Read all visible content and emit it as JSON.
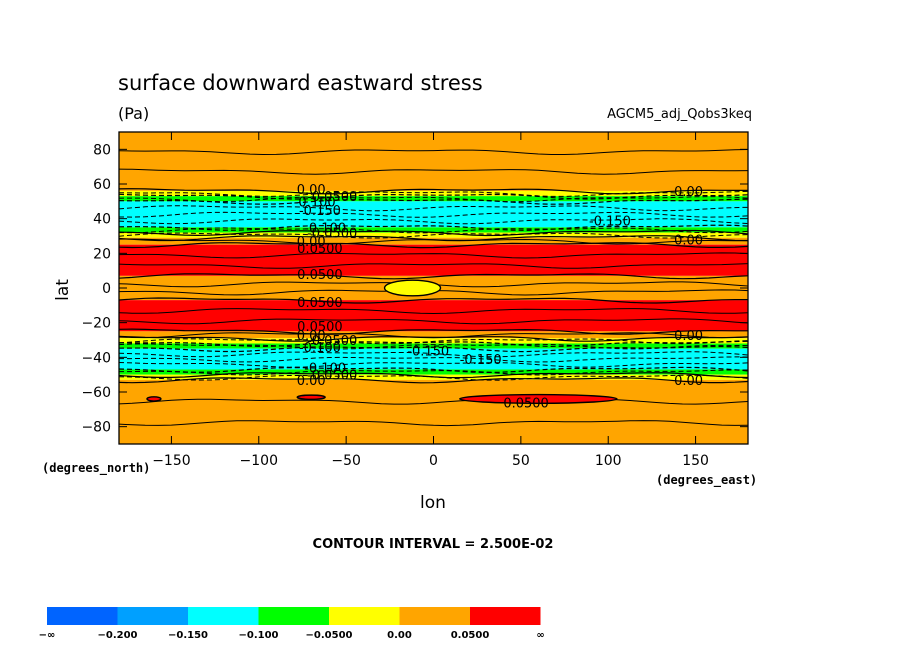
{
  "chart_data": {
    "type": "contour",
    "title": "surface downward eastward stress",
    "units": "(Pa)",
    "dataset": "AGCM5_adj_Qobs3keq",
    "xlabel": "lon",
    "ylabel": "lat",
    "x_units": "(degrees_east)",
    "y_units": "(degrees_north)",
    "xlim": [
      -180,
      180
    ],
    "ylim": [
      -90,
      90
    ],
    "x_ticks": [
      {
        "value": -150,
        "label": "−150"
      },
      {
        "value": -100,
        "label": "−100"
      },
      {
        "value": -50,
        "label": "−50"
      },
      {
        "value": 0,
        "label": "0"
      },
      {
        "value": 50,
        "label": "50"
      },
      {
        "value": 100,
        "label": "100"
      },
      {
        "value": 150,
        "label": "150"
      }
    ],
    "y_ticks": [
      {
        "value": 80,
        "label": "80"
      },
      {
        "value": 60,
        "label": "60"
      },
      {
        "value": 40,
        "label": "40"
      },
      {
        "value": 20,
        "label": "20"
      },
      {
        "value": 0,
        "label": "0"
      },
      {
        "value": -20,
        "label": "−20"
      },
      {
        "value": -40,
        "label": "−40"
      },
      {
        "value": -60,
        "label": "−60"
      },
      {
        "value": -80,
        "label": "−80"
      }
    ],
    "contour_interval": "CONTOUR INTERVAL = 2.500E-02",
    "zonal_bands": [
      {
        "lat_min": 56,
        "lat_max": 90,
        "level": 3,
        "color": "#ffa500"
      },
      {
        "lat_min": 53,
        "lat_max": 56,
        "level": 2,
        "color": "#ffff00"
      },
      {
        "lat_min": 50,
        "lat_max": 53,
        "level": 1,
        "color": "#00ff00"
      },
      {
        "lat_min": 35,
        "lat_max": 50,
        "level": 0,
        "color": "#00ffff"
      },
      {
        "lat_min": 32,
        "lat_max": 35,
        "level": 1,
        "color": "#00ff00"
      },
      {
        "lat_min": 29,
        "lat_max": 32,
        "level": 2,
        "color": "#ffff00"
      },
      {
        "lat_min": 25,
        "lat_max": 29,
        "level": 3,
        "color": "#ffa500"
      },
      {
        "lat_min": 7,
        "lat_max": 25,
        "level": 4,
        "color": "#ff0000"
      },
      {
        "lat_min": -7,
        "lat_max": 7,
        "level": 3,
        "color": "#ffa500"
      },
      {
        "lat_min": -25,
        "lat_max": -7,
        "level": 4,
        "color": "#ff0000"
      },
      {
        "lat_min": -29,
        "lat_max": -25,
        "level": 3,
        "color": "#ffa500"
      },
      {
        "lat_min": -32,
        "lat_max": -29,
        "level": 2,
        "color": "#ffff00"
      },
      {
        "lat_min": -35,
        "lat_max": -32,
        "level": 1,
        "color": "#00ff00"
      },
      {
        "lat_min": -47,
        "lat_max": -35,
        "level": 0,
        "color": "#00ffff"
      },
      {
        "lat_min": -50,
        "lat_max": -47,
        "level": 1,
        "color": "#00ff00"
      },
      {
        "lat_min": -53,
        "lat_max": -50,
        "level": 2,
        "color": "#ffff00"
      },
      {
        "lat_min": -90,
        "lat_max": -53,
        "level": 3,
        "color": "#ffa500"
      }
    ],
    "features": [
      {
        "kind": "yellow-cell",
        "lon": -12,
        "lat": 0,
        "lon_half": 16,
        "lat_half": 4.5,
        "color": "#ffff00"
      },
      {
        "kind": "red-patch",
        "lon": 60,
        "lat": -64,
        "lon_half": 45,
        "lat_half": 2.5,
        "color": "#ff0000"
      },
      {
        "kind": "red-patch",
        "lon": -70,
        "lat": -63,
        "lon_half": 8,
        "lat_half": 1.2,
        "color": "#ff0000"
      },
      {
        "kind": "red-patch",
        "lon": -160,
        "lat": -64,
        "lon_half": 4,
        "lat_half": 1.2,
        "color": "#ff0000"
      }
    ],
    "contour_labels": [
      {
        "text": "0.00",
        "lon": -70,
        "lat": 57
      },
      {
        "text": "-0.0500",
        "lon": -58,
        "lat": 53
      },
      {
        "text": "-0.100",
        "lon": -68,
        "lat": 50
      },
      {
        "text": "-0.150",
        "lon": -65,
        "lat": 45
      },
      {
        "text": "-0.100",
        "lon": -62,
        "lat": 35
      },
      {
        "text": "-0.0500",
        "lon": -58,
        "lat": 32
      },
      {
        "text": "0.00",
        "lon": -70,
        "lat": 27
      },
      {
        "text": "0.0500",
        "lon": -65,
        "lat": 23
      },
      {
        "text": "0.0500",
        "lon": -65,
        "lat": 8
      },
      {
        "text": "0.0500",
        "lon": -65,
        "lat": -8
      },
      {
        "text": "0.0500",
        "lon": -65,
        "lat": -22
      },
      {
        "text": "0.00",
        "lon": -70,
        "lat": -27
      },
      {
        "text": "-0.0500",
        "lon": -58,
        "lat": -30
      },
      {
        "text": "-0.100",
        "lon": -65,
        "lat": -34
      },
      {
        "text": "-0.150",
        "lon": -3,
        "lat": -36
      },
      {
        "text": "-0.150",
        "lon": 27,
        "lat": -41
      },
      {
        "text": "-0.100",
        "lon": -62,
        "lat": -46
      },
      {
        "text": "-0.0500",
        "lon": -58,
        "lat": -50
      },
      {
        "text": "0.00",
        "lon": -70,
        "lat": -53
      },
      {
        "text": "0.0500",
        "lon": 53,
        "lat": -66
      },
      {
        "text": "0.00",
        "lon": 146,
        "lat": 56
      },
      {
        "text": "-0.150",
        "lon": 101,
        "lat": 39
      },
      {
        "text": "0.00",
        "lon": 146,
        "lat": 28
      },
      {
        "text": "0.00",
        "lon": 146,
        "lat": -27
      },
      {
        "text": "0.00",
        "lon": 146,
        "lat": -53
      }
    ],
    "colorbar": {
      "colors": [
        "#0064ff",
        "#00a0ff",
        "#00ffff",
        "#00ff00",
        "#ffff00",
        "#ffa500",
        "#ff0000"
      ],
      "labels": [
        "−∞",
        "−0.200",
        "−0.150",
        "−0.100",
        "−0.0500",
        "0.00",
        "0.0500",
        "∞"
      ]
    }
  }
}
